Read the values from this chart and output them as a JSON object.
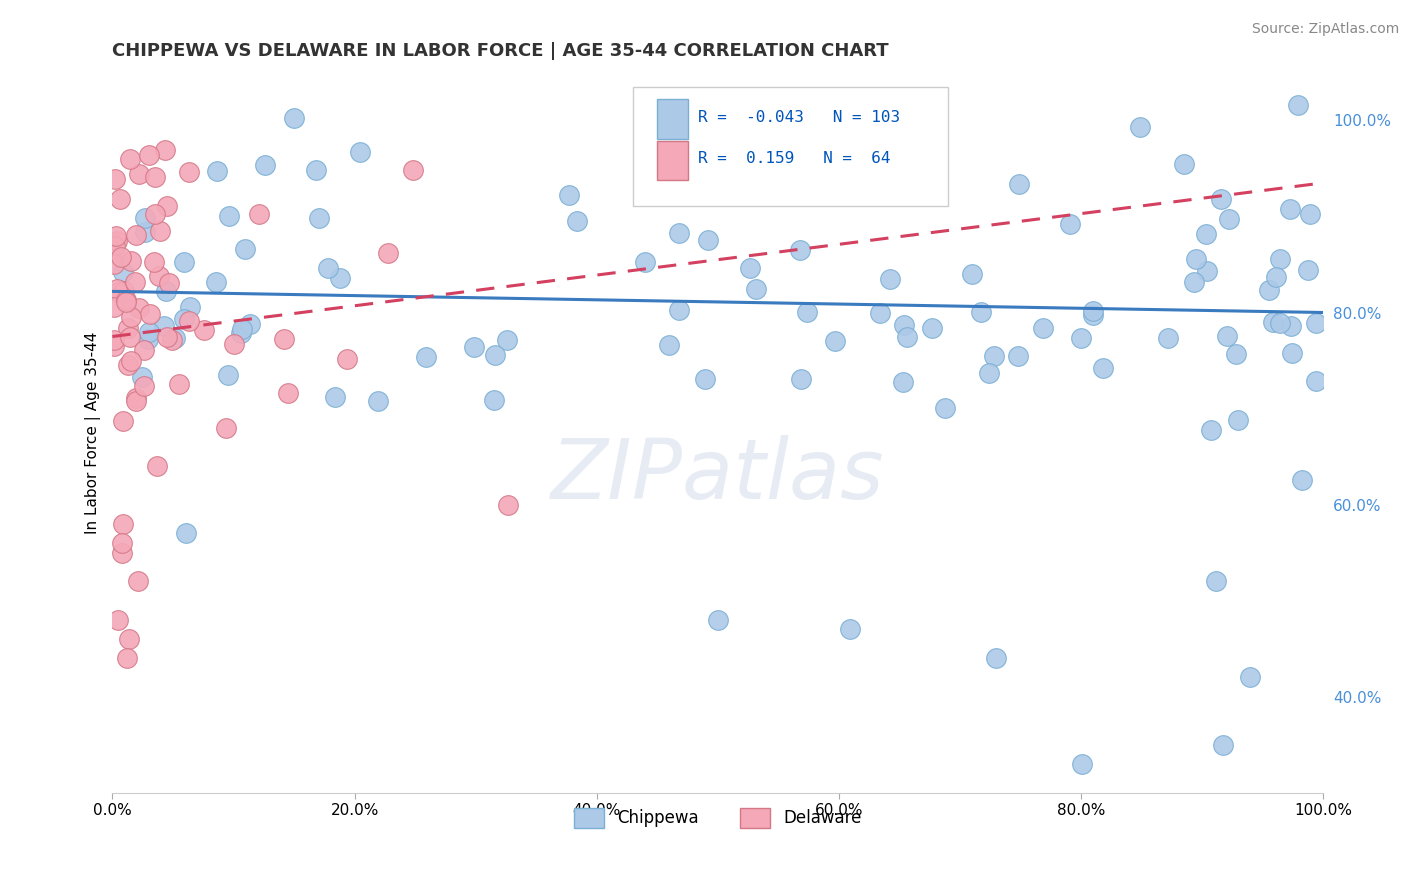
{
  "title": "CHIPPEWA VS DELAWARE IN LABOR FORCE | AGE 35-44 CORRELATION CHART",
  "source": "Source: ZipAtlas.com",
  "ylabel": "In Labor Force | Age 35-44",
  "xlim": [
    0.0,
    1.0
  ],
  "ylim": [
    0.3,
    1.05
  ],
  "chippewa_R": -0.043,
  "chippewa_N": 103,
  "delaware_R": 0.159,
  "delaware_N": 64,
  "chippewa_color": "#adc9e8",
  "chippewa_edge": "#7aafd4",
  "delaware_color": "#f4a8b8",
  "delaware_edge": "#d47888",
  "chippewa_line_color": "#3a7abf",
  "delaware_line_color": "#d44060",
  "watermark": "ZIPatlas",
  "ytick_color": "#4a90d9",
  "grid_color": "#cccccc",
  "title_color": "#333333"
}
